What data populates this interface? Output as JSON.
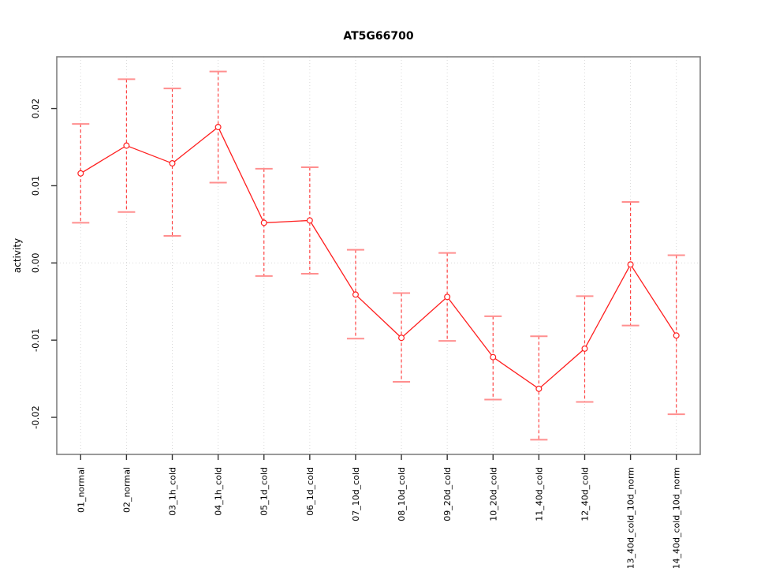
{
  "chart_data": {
    "type": "line",
    "title": "AT5G66700",
    "xlabel": "",
    "ylabel": "activity",
    "legend": "none",
    "categories": [
      "01_normal",
      "02_normal",
      "03_1h_cold",
      "04_1h_cold",
      "05_1d_cold",
      "06_1d_cold",
      "07_10d_cold",
      "08_10d_cold",
      "09_20d_cold",
      "10_20d_cold",
      "11_40d_cold",
      "12_40d_cold",
      "13_40d_cold_10d_norm",
      "14_40d_cold_10d_norm"
    ],
    "values": [
      0.0116,
      0.0152,
      0.0129,
      0.0176,
      0.0052,
      0.0055,
      -0.0041,
      -0.0097,
      -0.0044,
      -0.0122,
      -0.0163,
      -0.0111,
      -0.0002,
      -0.0094
    ],
    "error_low": [
      0.0052,
      0.0066,
      0.0035,
      0.0104,
      -0.0017,
      -0.0014,
      -0.0098,
      -0.0154,
      -0.0101,
      -0.0177,
      -0.0229,
      -0.018,
      -0.0081,
      -0.0196
    ],
    "error_high": [
      0.018,
      0.0238,
      0.0226,
      0.0248,
      0.0122,
      0.0124,
      0.0017,
      -0.0039,
      0.0013,
      -0.0069,
      -0.0095,
      -0.0043,
      0.0079,
      0.001
    ],
    "yticks": [
      -0.02,
      -0.01,
      0,
      0.01,
      0.02
    ],
    "ytick_labels": [
      "-0.02",
      "-0.01",
      "0.00",
      "0.01",
      "0.02"
    ],
    "ylim": [
      -0.0248,
      0.0267
    ],
    "grid": {
      "vertical": "per-category",
      "horizontal_at": [
        0
      ]
    },
    "point_style": "open-circle",
    "error_bar_style": "dashed",
    "colors": {
      "series": "#ff1f1f",
      "error_bar": "#ff4545",
      "error_cap": "#ff8f8f",
      "grid": "#d9d9d9",
      "frame": "#808080",
      "tick": "#333333",
      "text": "#000000",
      "background": "#ffffff"
    }
  }
}
